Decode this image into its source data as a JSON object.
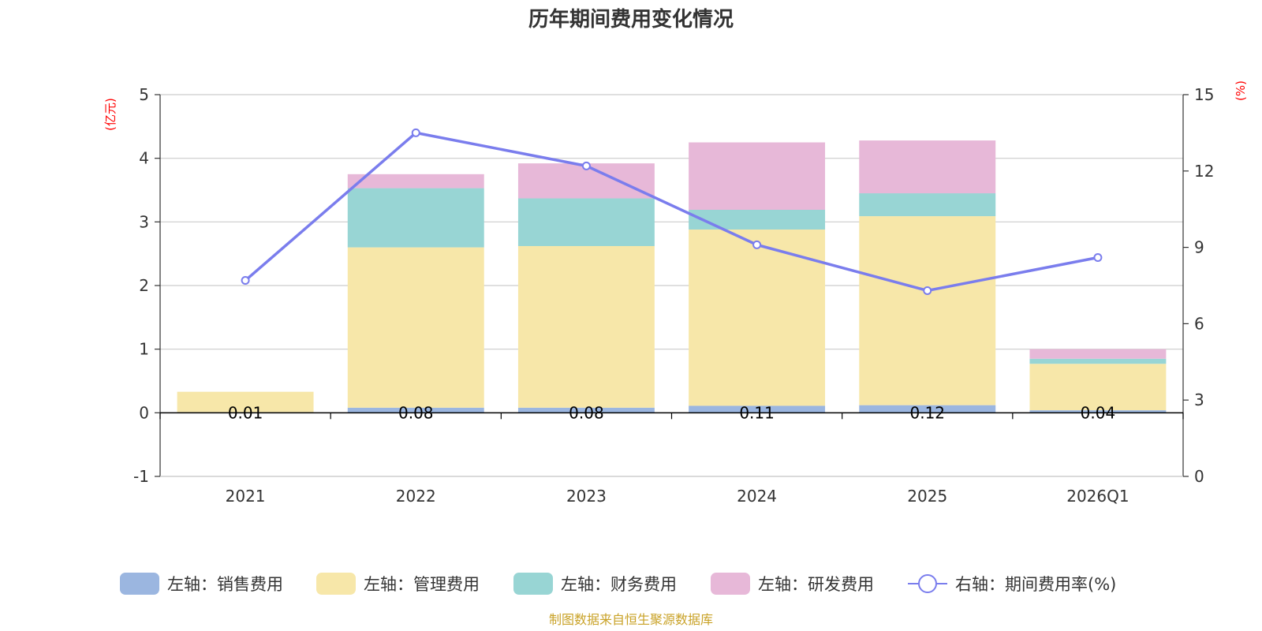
{
  "chart_data": {
    "type": "bar",
    "stacked": true,
    "title": "历年期间费用变化情况",
    "categories": [
      "2021",
      "2022",
      "2023",
      "2024",
      "2025",
      "2026Q1"
    ],
    "left_axis": {
      "unit_label": "(亿元)",
      "ylim": [
        -1,
        5
      ],
      "ticks": [
        "-1",
        "0",
        "1",
        "2",
        "3",
        "4",
        "5"
      ]
    },
    "right_axis": {
      "unit_label": "(%)",
      "ylim": [
        0,
        15
      ],
      "ticks": [
        "0",
        "3",
        "6",
        "9",
        "12",
        "15"
      ]
    },
    "series": [
      {
        "name": "左轴：销售费用",
        "axis": "left",
        "type": "bar",
        "color": "#9bb6e0",
        "values": [
          0.01,
          0.08,
          0.08,
          0.11,
          0.12,
          0.04
        ],
        "labels": [
          "0.01",
          "0.08",
          "0.08",
          "0.11",
          "0.12",
          "0.04"
        ]
      },
      {
        "name": "左轴：管理费用",
        "axis": "left",
        "type": "bar",
        "color": "#f7e7a9",
        "values": [
          0.32,
          2.52,
          2.54,
          2.77,
          2.97,
          0.73
        ]
      },
      {
        "name": "左轴：财务费用",
        "axis": "left",
        "type": "bar",
        "color": "#98d5d4",
        "values": [
          0.0,
          0.93,
          0.75,
          0.31,
          0.36,
          0.08
        ]
      },
      {
        "name": "左轴：研发费用",
        "axis": "left",
        "type": "bar",
        "color": "#e7b8d8",
        "values": [
          0.0,
          0.22,
          0.55,
          1.06,
          0.83,
          0.15
        ]
      },
      {
        "name": "右轴：期间费用率(%)",
        "axis": "right",
        "type": "line",
        "color": "#7a7ded",
        "values": [
          7.7,
          13.5,
          12.2,
          9.1,
          7.3,
          8.6
        ]
      }
    ]
  },
  "source_note": "制图数据来自恒生聚源数据库"
}
